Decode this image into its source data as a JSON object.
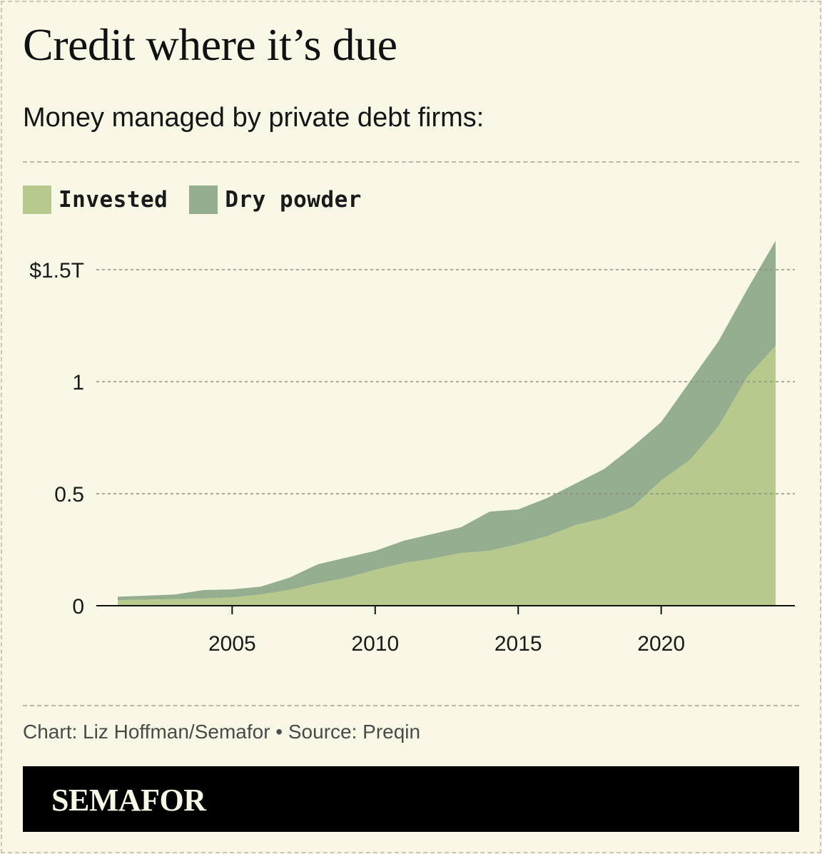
{
  "header": {
    "title": "Credit where it’s due",
    "subtitle": "Money managed by private debt firms:"
  },
  "legend": {
    "items": [
      {
        "label": "Invested",
        "color": "#b7c98d"
      },
      {
        "label": "Dry powder",
        "color": "#94ae8f"
      }
    ]
  },
  "footer": {
    "credit": "Chart: Liz Hoffman/Semafor • Source: Preqin",
    "brand": "SEMAFOR"
  },
  "chart_data": {
    "type": "area",
    "stacked": true,
    "x": [
      2001,
      2002,
      2003,
      2004,
      2005,
      2006,
      2007,
      2008,
      2009,
      2010,
      2011,
      2012,
      2013,
      2014,
      2015,
      2016,
      2017,
      2018,
      2019,
      2020,
      2021,
      2022,
      2023,
      2024
    ],
    "series": [
      {
        "name": "Invested",
        "color": "#b7c98d",
        "values": [
          0.025,
          0.027,
          0.03,
          0.032,
          0.037,
          0.05,
          0.07,
          0.1,
          0.125,
          0.16,
          0.19,
          0.21,
          0.235,
          0.245,
          0.275,
          0.31,
          0.36,
          0.39,
          0.44,
          0.56,
          0.65,
          0.8,
          1.02,
          1.16
        ]
      },
      {
        "name": "Dry powder",
        "color": "#94ae8f",
        "values": [
          0.015,
          0.018,
          0.02,
          0.038,
          0.036,
          0.035,
          0.055,
          0.085,
          0.09,
          0.085,
          0.1,
          0.11,
          0.115,
          0.175,
          0.155,
          0.17,
          0.185,
          0.22,
          0.27,
          0.26,
          0.35,
          0.38,
          0.39,
          0.47
        ]
      }
    ],
    "y_ticks": [
      {
        "value": 0,
        "label": "0"
      },
      {
        "value": 0.5,
        "label": "0.5"
      },
      {
        "value": 1,
        "label": "1"
      },
      {
        "value": 1.5,
        "label": "$1.5T"
      }
    ],
    "x_ticks": [
      {
        "value": 2005,
        "label": "2005"
      },
      {
        "value": 2010,
        "label": "2010"
      },
      {
        "value": 2015,
        "label": "2015"
      },
      {
        "value": 2020,
        "label": "2020"
      }
    ],
    "xlim": [
      2000,
      2025
    ],
    "ylim": [
      0,
      1.5
    ],
    "grid": true,
    "legend_position": "top-left"
  }
}
